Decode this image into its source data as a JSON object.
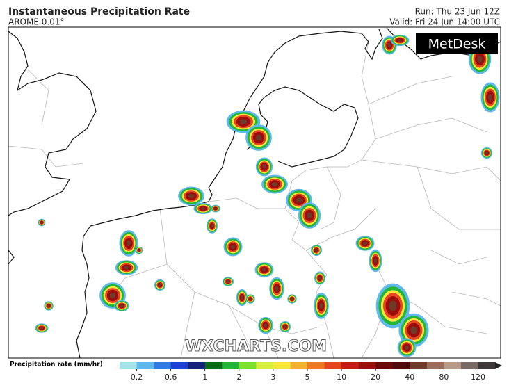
{
  "header": {
    "title": "Instantaneous Precipitation Rate",
    "model": "AROME 0.01°",
    "run": "Run: Thu 23 Jun 12Z",
    "valid": "Valid: Fri 24 Jun 14:00 UTC"
  },
  "logo": "MetDesk",
  "watermark": "WXCHARTS.COM",
  "colorbar": {
    "label": "Precipitation rate (mm/hr)",
    "colors": [
      "#a6e3e8",
      "#5fb8ec",
      "#2f7be3",
      "#1f3fd8",
      "#14207a",
      "#0a6a1a",
      "#21b53a",
      "#7fe02a",
      "#d8f03a",
      "#f5e838",
      "#f2b12a",
      "#ee7a20",
      "#e84420",
      "#c81818",
      "#9c0e0e",
      "#6e0808",
      "#4e0a0a",
      "#6e3a2a",
      "#9a6e5a",
      "#b89a86",
      "#7a6a66",
      "#3e3838",
      "#222222"
    ],
    "ticks": [
      0.2,
      0.6,
      1,
      2,
      3,
      5,
      10,
      20,
      40,
      80,
      120
    ]
  }
}
